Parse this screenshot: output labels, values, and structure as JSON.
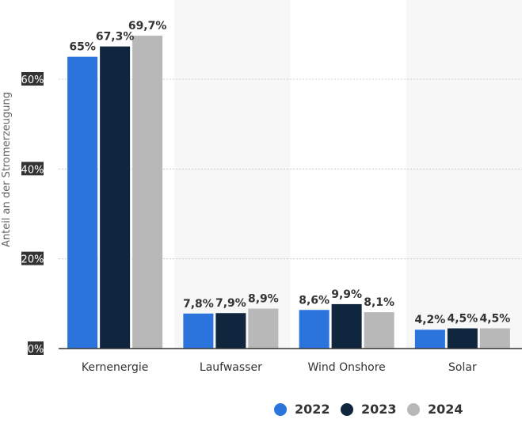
{
  "chart_data": {
    "type": "bar",
    "ylabel": "Anteil an der Stromerzeugung",
    "ylim": [
      0,
      70
    ],
    "yticks": [
      0,
      20,
      40,
      60
    ],
    "ytick_labels": [
      "0%",
      "20%",
      "40%",
      "60%"
    ],
    "grid": true,
    "legend_position": "bottom",
    "categories": [
      "Kernenergie",
      "Laufwasser",
      "Wind Onshore",
      "Solar"
    ],
    "series": [
      {
        "name": "2022",
        "color": "#2a74dc",
        "values": [
          65,
          7.8,
          8.6,
          4.2
        ],
        "labels": [
          "65%",
          "7,8%",
          "8,6%",
          "4,2%"
        ]
      },
      {
        "name": "2023",
        "color": "#10263f",
        "values": [
          67.3,
          7.9,
          9.9,
          4.5
        ],
        "labels": [
          "67,3%",
          "7,9%",
          "9,9%",
          "4,5%"
        ]
      },
      {
        "name": "2024",
        "color": "#b8b8b8",
        "values": [
          69.7,
          8.9,
          8.1,
          4.5
        ],
        "labels": [
          "69,7%",
          "8,9%",
          "8,1%",
          "4,5%"
        ]
      }
    ]
  }
}
